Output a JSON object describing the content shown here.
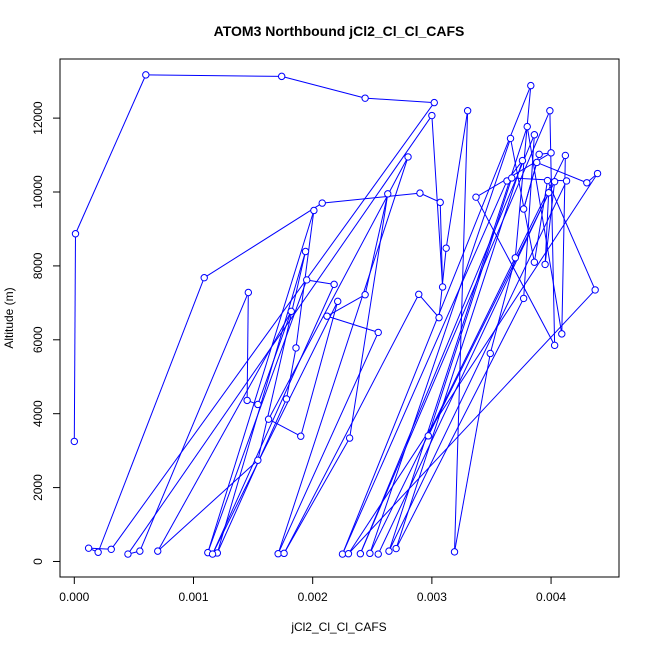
{
  "chart_data": {
    "type": "line",
    "title": "ATOM3 Northbound jCl2_Cl_Cl_CAFS",
    "xlabel": "jCl2_Cl_Cl_CAFS",
    "ylabel": "Altitude (m)",
    "xlim": [
      -0.00012,
      0.00457
    ],
    "ylim": [
      -420,
      13600
    ],
    "xticks": [
      0.0,
      0.001,
      0.002,
      0.003,
      0.004
    ],
    "xtick_labels": [
      "0.000",
      "0.001",
      "0.002",
      "0.003",
      "0.004"
    ],
    "yticks": [
      0,
      2000,
      4000,
      6000,
      8000,
      10000,
      12000
    ],
    "ytick_labels": [
      "0",
      "2000",
      "4000",
      "6000",
      "8000",
      "10000",
      "12000"
    ],
    "grid": false,
    "series_color": "#0000ff",
    "markers": "open-circle",
    "series": [
      {
        "name": "",
        "points": [
          [
            0.0,
            3250
          ],
          [
            1e-05,
            8870
          ],
          [
            0.0006,
            13170
          ],
          [
            0.00174,
            13130
          ],
          [
            0.00244,
            12540
          ],
          [
            0.00302,
            12420
          ],
          [
            0.00031,
            330
          ],
          [
            0.00012,
            360
          ],
          [
            0.0002,
            250
          ],
          [
            0.00109,
            7680
          ],
          [
            0.00208,
            9700
          ],
          [
            0.0029,
            9970
          ],
          [
            0.00307,
            9720
          ],
          [
            0.00309,
            7430
          ],
          [
            0.003,
            12070
          ],
          [
            0.00045,
            200
          ],
          [
            0.00055,
            280
          ],
          [
            0.00146,
            7280
          ],
          [
            0.00145,
            4360
          ],
          [
            0.00154,
            4250
          ],
          [
            0.00182,
            6770
          ],
          [
            0.0007,
            280
          ],
          [
            0.00154,
            2740
          ],
          [
            0.00194,
            8390
          ],
          [
            0.0012,
            230
          ],
          [
            0.00178,
            4400
          ],
          [
            0.00186,
            5780
          ],
          [
            0.00201,
            9500
          ],
          [
            0.00112,
            240
          ],
          [
            0.00195,
            7620
          ],
          [
            0.00218,
            7500
          ],
          [
            0.00116,
            200
          ],
          [
            0.00221,
            7040
          ],
          [
            0.0019,
            3390
          ],
          [
            0.00163,
            3850
          ],
          [
            0.0028,
            10950
          ],
          [
            0.00171,
            210
          ],
          [
            0.00255,
            6200
          ],
          [
            0.00212,
            6640
          ],
          [
            0.00244,
            7220
          ],
          [
            0.00263,
            9950
          ],
          [
            0.00231,
            3340
          ],
          [
            0.00176,
            220
          ],
          [
            0.00289,
            7230
          ],
          [
            0.00306,
            6600
          ],
          [
            0.00312,
            8480
          ],
          [
            0.0033,
            12200
          ],
          [
            0.00319,
            260
          ],
          [
            0.00349,
            5630
          ],
          [
            0.0037,
            8220
          ],
          [
            0.00383,
            12880
          ],
          [
            0.00225,
            200
          ],
          [
            0.00363,
            10300
          ],
          [
            0.00376,
            10850
          ],
          [
            0.0027,
            350
          ],
          [
            0.00377,
            7120
          ],
          [
            0.00386,
            11550
          ],
          [
            0.0024,
            210
          ],
          [
            0.00399,
            12200
          ],
          [
            0.00403,
            5850
          ],
          [
            0.00337,
            9860
          ],
          [
            0.004,
            11060
          ],
          [
            0.0039,
            11020
          ],
          [
            0.00377,
            9540
          ],
          [
            0.00388,
            10800
          ],
          [
            0.0043,
            10250
          ],
          [
            0.00439,
            10500
          ],
          [
            0.0023,
            210
          ],
          [
            0.00437,
            7350
          ],
          [
            0.00397,
            10310
          ],
          [
            0.00386,
            8100
          ],
          [
            0.00366,
            11450
          ],
          [
            0.00248,
            220
          ],
          [
            0.00412,
            10990
          ],
          [
            0.00409,
            6160
          ],
          [
            0.0038,
            11770
          ],
          [
            0.00264,
            280
          ],
          [
            0.00413,
            10300
          ],
          [
            0.00367,
            10380
          ],
          [
            0.00297,
            3400
          ],
          [
            0.00403,
            10280
          ],
          [
            0.00395,
            8040
          ],
          [
            0.00398,
            9980
          ],
          [
            0.00255,
            200
          ]
        ]
      }
    ]
  }
}
